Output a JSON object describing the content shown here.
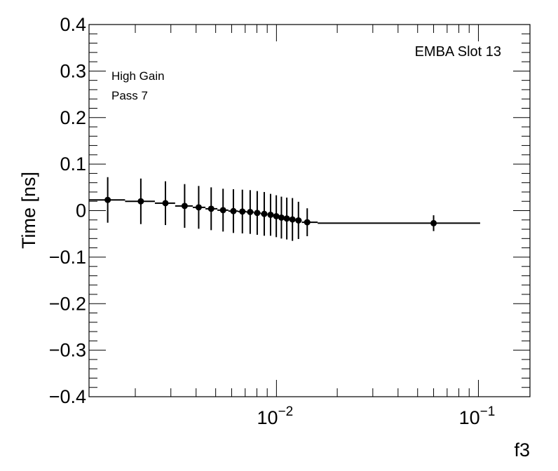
{
  "chart_data": {
    "type": "scatter",
    "xlabel": "f3",
    "ylabel": "Time [ns]",
    "xscale": "log",
    "xlim": [
      0.00118,
      0.18
    ],
    "ylim": [
      -0.4,
      0.4
    ],
    "grid": false,
    "annotations": {
      "slot": "EMBA Slot 13",
      "gain": "High Gain",
      "pass": "Pass 7"
    },
    "y_ticks": [
      {
        "value": 0.4,
        "label": "0.4"
      },
      {
        "value": 0.3,
        "label": "0.3"
      },
      {
        "value": 0.2,
        "label": "0.2"
      },
      {
        "value": 0.1,
        "label": "0.1"
      },
      {
        "value": 0,
        "label": "0"
      },
      {
        "value": -0.1,
        "label": "−0.1"
      },
      {
        "value": -0.2,
        "label": "−0.2"
      },
      {
        "value": -0.3,
        "label": "−0.3"
      },
      {
        "value": -0.4,
        "label": "−0.4"
      }
    ],
    "x_ticks": [
      {
        "value": 0.01,
        "base": "10",
        "exp": "−2"
      },
      {
        "value": 0.1,
        "base": "10",
        "exp": "−1"
      }
    ],
    "points": [
      {
        "x": 0.00146,
        "y": 0.023,
        "err": 0.049,
        "xlo": 0.00118,
        "xhi": 0.00178
      },
      {
        "x": 0.00213,
        "y": 0.02,
        "err": 0.049,
        "xlo": 0.00178,
        "xhi": 0.0025
      },
      {
        "x": 0.00282,
        "y": 0.016,
        "err": 0.047,
        "xlo": 0.0025,
        "xhi": 0.00315
      },
      {
        "x": 0.00351,
        "y": 0.01,
        "err": 0.047,
        "xlo": 0.00315,
        "xhi": 0.00385
      },
      {
        "x": 0.00412,
        "y": 0.007,
        "err": 0.046,
        "xlo": 0.00385,
        "xhi": 0.00445
      },
      {
        "x": 0.00475,
        "y": 0.004,
        "err": 0.046,
        "xlo": 0.00445,
        "xhi": 0.0051
      },
      {
        "x": 0.00544,
        "y": 0.001,
        "err": 0.046,
        "xlo": 0.0051,
        "xhi": 0.00578
      },
      {
        "x": 0.00612,
        "y": -0.001,
        "err": 0.047,
        "xlo": 0.00578,
        "xhi": 0.00645
      },
      {
        "x": 0.00678,
        "y": -0.002,
        "err": 0.047,
        "xlo": 0.00645,
        "xhi": 0.0071
      },
      {
        "x": 0.00741,
        "y": -0.003,
        "err": 0.047,
        "xlo": 0.0071,
        "xhi": 0.00772
      },
      {
        "x": 0.00803,
        "y": -0.005,
        "err": 0.047,
        "xlo": 0.00772,
        "xhi": 0.00836
      },
      {
        "x": 0.0087,
        "y": -0.007,
        "err": 0.047,
        "xlo": 0.00836,
        "xhi": 0.00902
      },
      {
        "x": 0.00935,
        "y": -0.009,
        "err": 0.045,
        "xlo": 0.00902,
        "xhi": 0.00968
      },
      {
        "x": 0.00998,
        "y": -0.012,
        "err": 0.045,
        "xlo": 0.00968,
        "xhi": 0.01028
      },
      {
        "x": 0.01058,
        "y": -0.015,
        "err": 0.045,
        "xlo": 0.01028,
        "xhi": 0.0109
      },
      {
        "x": 0.01125,
        "y": -0.017,
        "err": 0.045,
        "xlo": 0.0109,
        "xhi": 0.0116
      },
      {
        "x": 0.012,
        "y": -0.019,
        "err": 0.046,
        "xlo": 0.0116,
        "xhi": 0.0124
      },
      {
        "x": 0.01285,
        "y": -0.021,
        "err": 0.04,
        "xlo": 0.0124,
        "xhi": 0.01335
      },
      {
        "x": 0.0142,
        "y": -0.025,
        "err": 0.03,
        "xlo": 0.01335,
        "xhi": 0.016
      },
      {
        "x": 0.06,
        "y": -0.027,
        "err": 0.017,
        "xlo": 0.016,
        "xhi": 0.102
      }
    ]
  }
}
